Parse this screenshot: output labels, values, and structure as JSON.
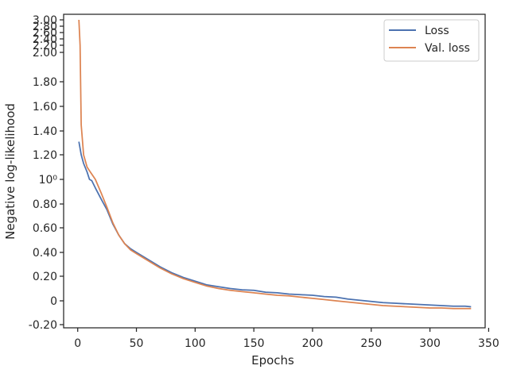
{
  "chart_data": {
    "type": "line",
    "title": "",
    "xlabel": "Epochs",
    "ylabel": "Negative log-likelihood",
    "y_scale": "log",
    "xlim": [
      -12,
      347
    ],
    "x_ticks": [
      {
        "value": 0,
        "label": "0"
      },
      {
        "value": 50,
        "label": "50"
      },
      {
        "value": 100,
        "label": "100"
      },
      {
        "value": 150,
        "label": "150"
      },
      {
        "value": 200,
        "label": "200"
      },
      {
        "value": 250,
        "label": "250"
      },
      {
        "value": 300,
        "label": "300"
      },
      {
        "value": 350,
        "label": "350"
      }
    ],
    "y_ticks": [
      {
        "value": 3.0,
        "label": "3.00"
      },
      {
        "value": 2.8,
        "label": "2.80"
      },
      {
        "value": 2.6,
        "label": "2.60"
      },
      {
        "value": 2.4,
        "label": "2.40"
      },
      {
        "value": 2.2,
        "label": "2.20"
      },
      {
        "value": 2.0,
        "label": "2.00"
      },
      {
        "value": 1.8,
        "label": "1.80"
      },
      {
        "value": 1.6,
        "label": "1.60"
      },
      {
        "value": 1.4,
        "label": "1.40"
      },
      {
        "value": 1.2,
        "label": "1.20"
      },
      {
        "value": 1.0,
        "label": "10⁰"
      },
      {
        "value": 0.8,
        "label": "0.80"
      },
      {
        "value": 0.6,
        "label": "0.60"
      },
      {
        "value": 0.4,
        "label": "0.40"
      },
      {
        "value": 0.2,
        "label": "0.20"
      },
      {
        "value": 0,
        "label": "0"
      },
      {
        "value": -0.2,
        "label": "-0.20"
      }
    ],
    "legend": {
      "position": "top-right"
    },
    "grid": false,
    "series": [
      {
        "name": "Loss",
        "color": "#4c72b0",
        "x": [
          1,
          3,
          5,
          8,
          10,
          12,
          15,
          20,
          25,
          30,
          35,
          40,
          45,
          50,
          60,
          70,
          80,
          90,
          100,
          110,
          120,
          130,
          140,
          150,
          160,
          170,
          180,
          190,
          200,
          210,
          220,
          230,
          240,
          250,
          260,
          270,
          280,
          290,
          300,
          310,
          320,
          330,
          335
        ],
        "y": [
          1.31,
          1.2,
          1.13,
          1.06,
          1.0,
          0.99,
          0.93,
          0.84,
          0.75,
          0.63,
          0.54,
          0.47,
          0.43,
          0.4,
          0.34,
          0.28,
          0.23,
          0.19,
          0.16,
          0.13,
          0.115,
          0.1,
          0.09,
          0.085,
          0.07,
          0.065,
          0.055,
          0.05,
          0.045,
          0.035,
          0.03,
          0.015,
          0.005,
          -0.005,
          -0.015,
          -0.02,
          -0.025,
          -0.03,
          -0.035,
          -0.04,
          -0.045,
          -0.045,
          -0.05
        ]
      },
      {
        "name": "Val. loss",
        "color": "#dd8452",
        "x": [
          1,
          2,
          3,
          5,
          8,
          10,
          15,
          20,
          25,
          30,
          35,
          40,
          45,
          50,
          60,
          70,
          80,
          90,
          100,
          110,
          120,
          130,
          140,
          150,
          160,
          170,
          180,
          190,
          200,
          210,
          220,
          230,
          240,
          250,
          260,
          270,
          280,
          290,
          300,
          310,
          320,
          330,
          335
        ],
        "y": [
          3.0,
          2.2,
          1.45,
          1.2,
          1.1,
          1.07,
          1.0,
          0.89,
          0.77,
          0.64,
          0.54,
          0.47,
          0.42,
          0.39,
          0.33,
          0.27,
          0.22,
          0.18,
          0.15,
          0.12,
          0.1,
          0.085,
          0.075,
          0.065,
          0.055,
          0.045,
          0.04,
          0.03,
          0.02,
          0.01,
          0.0,
          -0.01,
          -0.02,
          -0.03,
          -0.04,
          -0.045,
          -0.05,
          -0.055,
          -0.06,
          -0.06,
          -0.065,
          -0.065,
          -0.065
        ]
      }
    ]
  }
}
